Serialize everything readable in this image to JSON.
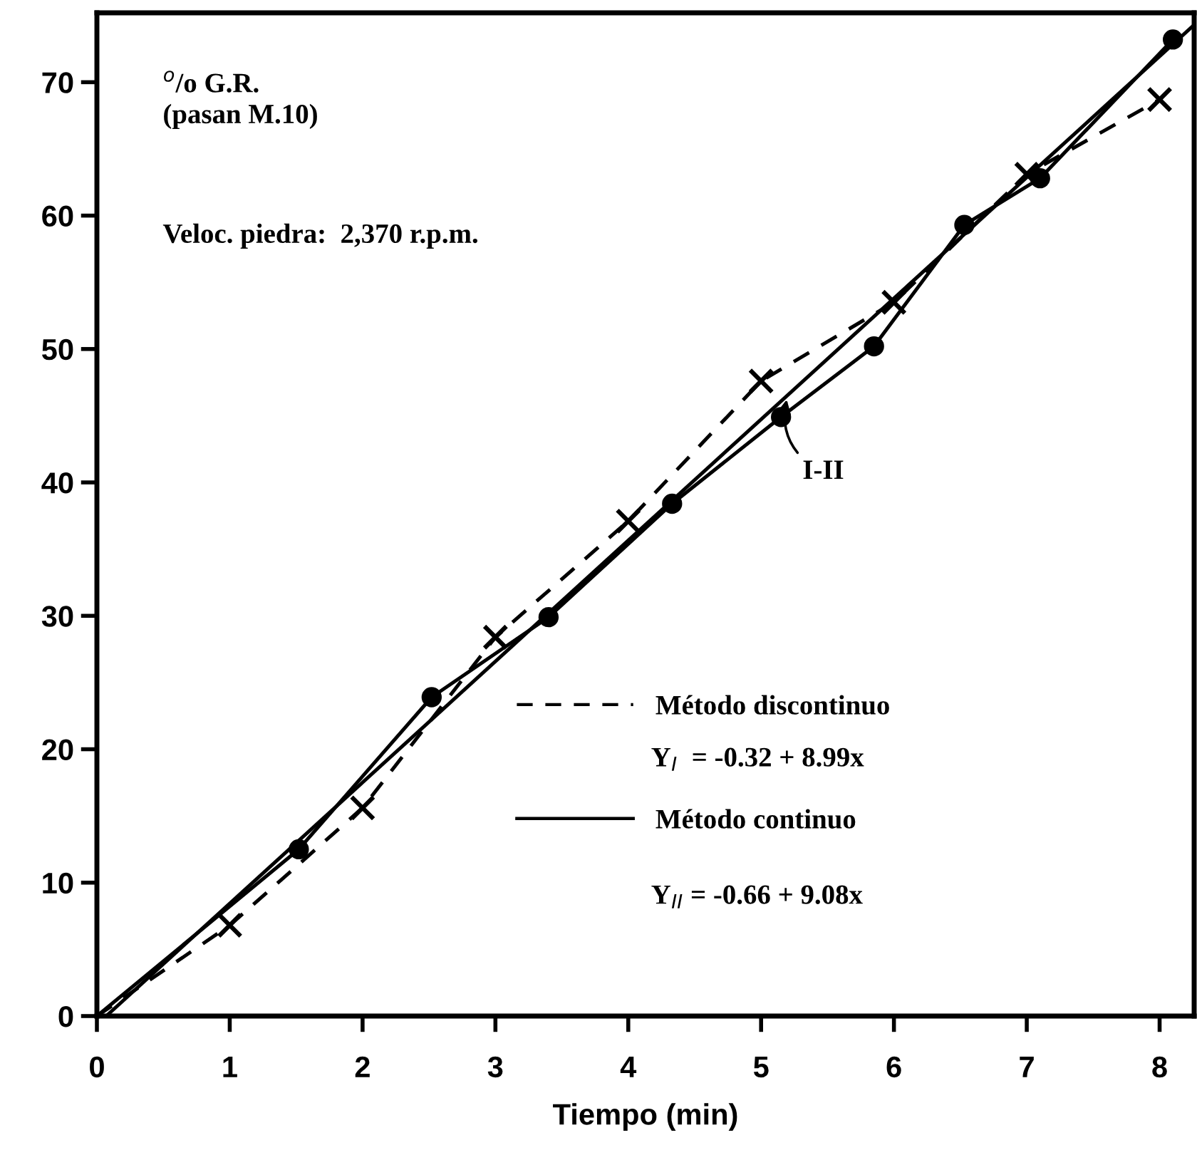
{
  "chart_data": {
    "type": "line",
    "xlabel": "Tiempo (min)",
    "xlim": [
      0,
      8.26
    ],
    "ylim": [
      0,
      75.2
    ],
    "xticks": [
      0,
      1,
      2,
      3,
      4,
      5,
      6,
      7,
      8
    ],
    "yticks": [
      0,
      10,
      20,
      30,
      40,
      50,
      60,
      70
    ],
    "grid": false,
    "legend": "bottom right",
    "series": [
      {
        "name": "Método discontinuo",
        "color": "#000000",
        "marker": "cross",
        "line_style": "dashed",
        "x": [
          0,
          1,
          2,
          3,
          4,
          5,
          6,
          7,
          8
        ],
        "values": [
          0,
          6.8,
          15.6,
          28.4,
          37.1,
          47.6,
          53.5,
          63.1,
          68.7
        ]
      },
      {
        "name": "Método continuo",
        "color": "#000000",
        "marker": "circle",
        "line_style": "solid",
        "x": [
          0,
          1.52,
          2.52,
          3.4,
          4.33,
          5.15,
          5.85,
          6.53,
          7.1,
          8.1
        ],
        "values": [
          0,
          12.5,
          23.9,
          29.9,
          38.4,
          44.9,
          50.2,
          59.3,
          62.8,
          73.2
        ]
      },
      {
        "color": "#000000",
        "marker": "none",
        "line_style": "solid",
        "x": [
          0.07,
          8.26
        ],
        "values": [
          0,
          74.3
        ]
      }
    ],
    "annotations": [
      "$^{o}$/o G.R.\n(pasan M.10)",
      "Veloc. piedra:  2,370 r.p.m.",
      "Y$_{I}$  = -0.32 + 8.99x",
      "Y$_{II}$ = -0.66 + 9.08x",
      {
        "text": "I-II",
        "x": 5.2,
        "y": 46.5
      }
    ]
  }
}
